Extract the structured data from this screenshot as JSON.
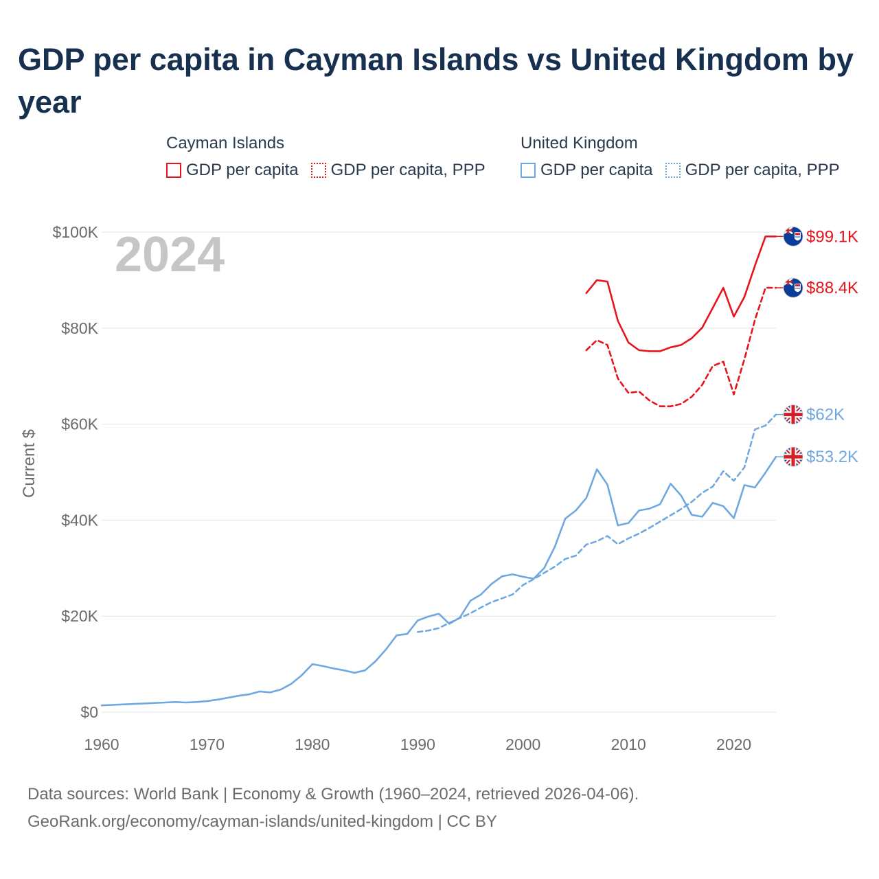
{
  "title": "GDP per capita in Cayman Islands vs United Kingdom by year",
  "year_label": "2024",
  "legend": {
    "groups": [
      {
        "name": "Cayman Islands",
        "items": [
          {
            "label": "GDP per capita",
            "color": "#e8141c",
            "style": "solid"
          },
          {
            "label": "GDP per capita, PPP",
            "color": "#e8141c",
            "style": "dotted"
          }
        ]
      },
      {
        "name": "United Kingdom",
        "items": [
          {
            "label": "GDP per capita",
            "color": "#6fa8e0",
            "style": "solid"
          },
          {
            "label": "GDP per capita, PPP",
            "color": "#6fa8e0",
            "style": "dotted"
          }
        ]
      }
    ]
  },
  "footer": {
    "line1": "Data sources: World Bank | Economy & Growth (1960–2024, retrieved 2026-04-06).",
    "line2": "GeoRank.org/economy/cayman-islands/united-kingdom | CC BY"
  },
  "chart_data": {
    "type": "line",
    "title": "GDP per capita in Cayman Islands vs United Kingdom by year",
    "xlabel": "",
    "ylabel": "Current $",
    "xlim": [
      1960,
      2024
    ],
    "ylim": [
      0,
      100000
    ],
    "x_ticks": [
      1960,
      1970,
      1980,
      1990,
      2000,
      2010,
      2020
    ],
    "x_tick_labels": [
      "1960",
      "1970",
      "1980",
      "1990",
      "2000",
      "2010",
      "2020"
    ],
    "y_ticks": [
      0,
      20000,
      40000,
      60000,
      80000,
      100000
    ],
    "y_tick_labels": [
      "$0",
      "$20K",
      "$40K",
      "$60K",
      "$80K",
      "$100K"
    ],
    "grid": true,
    "series": [
      {
        "name": "Cayman Islands GDP per capita",
        "country": "Cayman Islands",
        "color": "#e8141c",
        "dash": "solid",
        "end_label": "$99.1K",
        "x": [
          2006,
          2007,
          2008,
          2009,
          2010,
          2011,
          2012,
          2013,
          2014,
          2015,
          2016,
          2017,
          2018,
          2019,
          2020,
          2021,
          2022,
          2023,
          2024
        ],
        "values": [
          87300,
          90000,
          89700,
          81500,
          77000,
          75400,
          75200,
          75200,
          76000,
          76500,
          77900,
          80100,
          84200,
          88400,
          82400,
          86500,
          93000,
          99100,
          99100
        ]
      },
      {
        "name": "Cayman Islands GDP per capita, PPP",
        "country": "Cayman Islands",
        "color": "#e8141c",
        "dash": "dashed",
        "end_label": "$88.4K",
        "x": [
          2006,
          2007,
          2008,
          2009,
          2010,
          2011,
          2012,
          2013,
          2014,
          2015,
          2016,
          2017,
          2018,
          2019,
          2020,
          2021,
          2022,
          2023,
          2024
        ],
        "values": [
          75400,
          77500,
          76500,
          69500,
          66500,
          66800,
          64900,
          63700,
          63700,
          64200,
          65700,
          68200,
          72100,
          73000,
          66200,
          73500,
          81700,
          88400,
          88400
        ]
      },
      {
        "name": "United Kingdom GDP per capita",
        "country": "United Kingdom",
        "color": "#6fa8e0",
        "dash": "solid",
        "end_label": "$53.2K",
        "x": [
          1960,
          1961,
          1962,
          1963,
          1964,
          1965,
          1966,
          1967,
          1968,
          1969,
          1970,
          1971,
          1972,
          1973,
          1974,
          1975,
          1976,
          1977,
          1978,
          1979,
          1980,
          1981,
          1982,
          1983,
          1984,
          1985,
          1986,
          1987,
          1988,
          1989,
          1990,
          1991,
          1992,
          1993,
          1994,
          1995,
          1996,
          1997,
          1998,
          1999,
          2000,
          2001,
          2002,
          2003,
          2004,
          2005,
          2006,
          2007,
          2008,
          2009,
          2010,
          2011,
          2012,
          2013,
          2014,
          2015,
          2016,
          2017,
          2018,
          2019,
          2020,
          2021,
          2022,
          2023,
          2024
        ],
        "values": [
          1400,
          1500,
          1600,
          1700,
          1800,
          1900,
          2000,
          2100,
          2000,
          2100,
          2300,
          2600,
          3000,
          3400,
          3700,
          4300,
          4100,
          4700,
          5900,
          7700,
          10000,
          9600,
          9100,
          8700,
          8200,
          8700,
          10600,
          13100,
          16000,
          16300,
          19100,
          19900,
          20500,
          18400,
          19700,
          23200,
          24500,
          26700,
          28300,
          28700,
          28200,
          27800,
          30000,
          34400,
          40300,
          42000,
          44600,
          50600,
          47400,
          38900,
          39400,
          42000,
          42400,
          43300,
          47600,
          45100,
          41100,
          40700,
          43600,
          42900,
          40400,
          47300,
          46800,
          49900,
          53200
        ]
      },
      {
        "name": "United Kingdom GDP per capita, PPP",
        "country": "United Kingdom",
        "color": "#6fa8e0",
        "dash": "dashed",
        "end_label": "$62K",
        "x": [
          1990,
          1991,
          1992,
          1993,
          1994,
          1995,
          1996,
          1997,
          1998,
          1999,
          2000,
          2001,
          2002,
          2003,
          2004,
          2005,
          2006,
          2007,
          2008,
          2009,
          2010,
          2011,
          2012,
          2013,
          2014,
          2015,
          2016,
          2017,
          2018,
          2019,
          2020,
          2021,
          2022,
          2023,
          2024
        ],
        "values": [
          16700,
          17000,
          17500,
          18600,
          19600,
          20600,
          21800,
          22900,
          23700,
          24500,
          26500,
          27700,
          29000,
          30300,
          31900,
          32600,
          34900,
          35600,
          36700,
          35000,
          36200,
          37200,
          38400,
          39700,
          41000,
          42300,
          43800,
          45700,
          47000,
          50200,
          48200,
          51000,
          58900,
          59700,
          62000
        ]
      }
    ]
  }
}
